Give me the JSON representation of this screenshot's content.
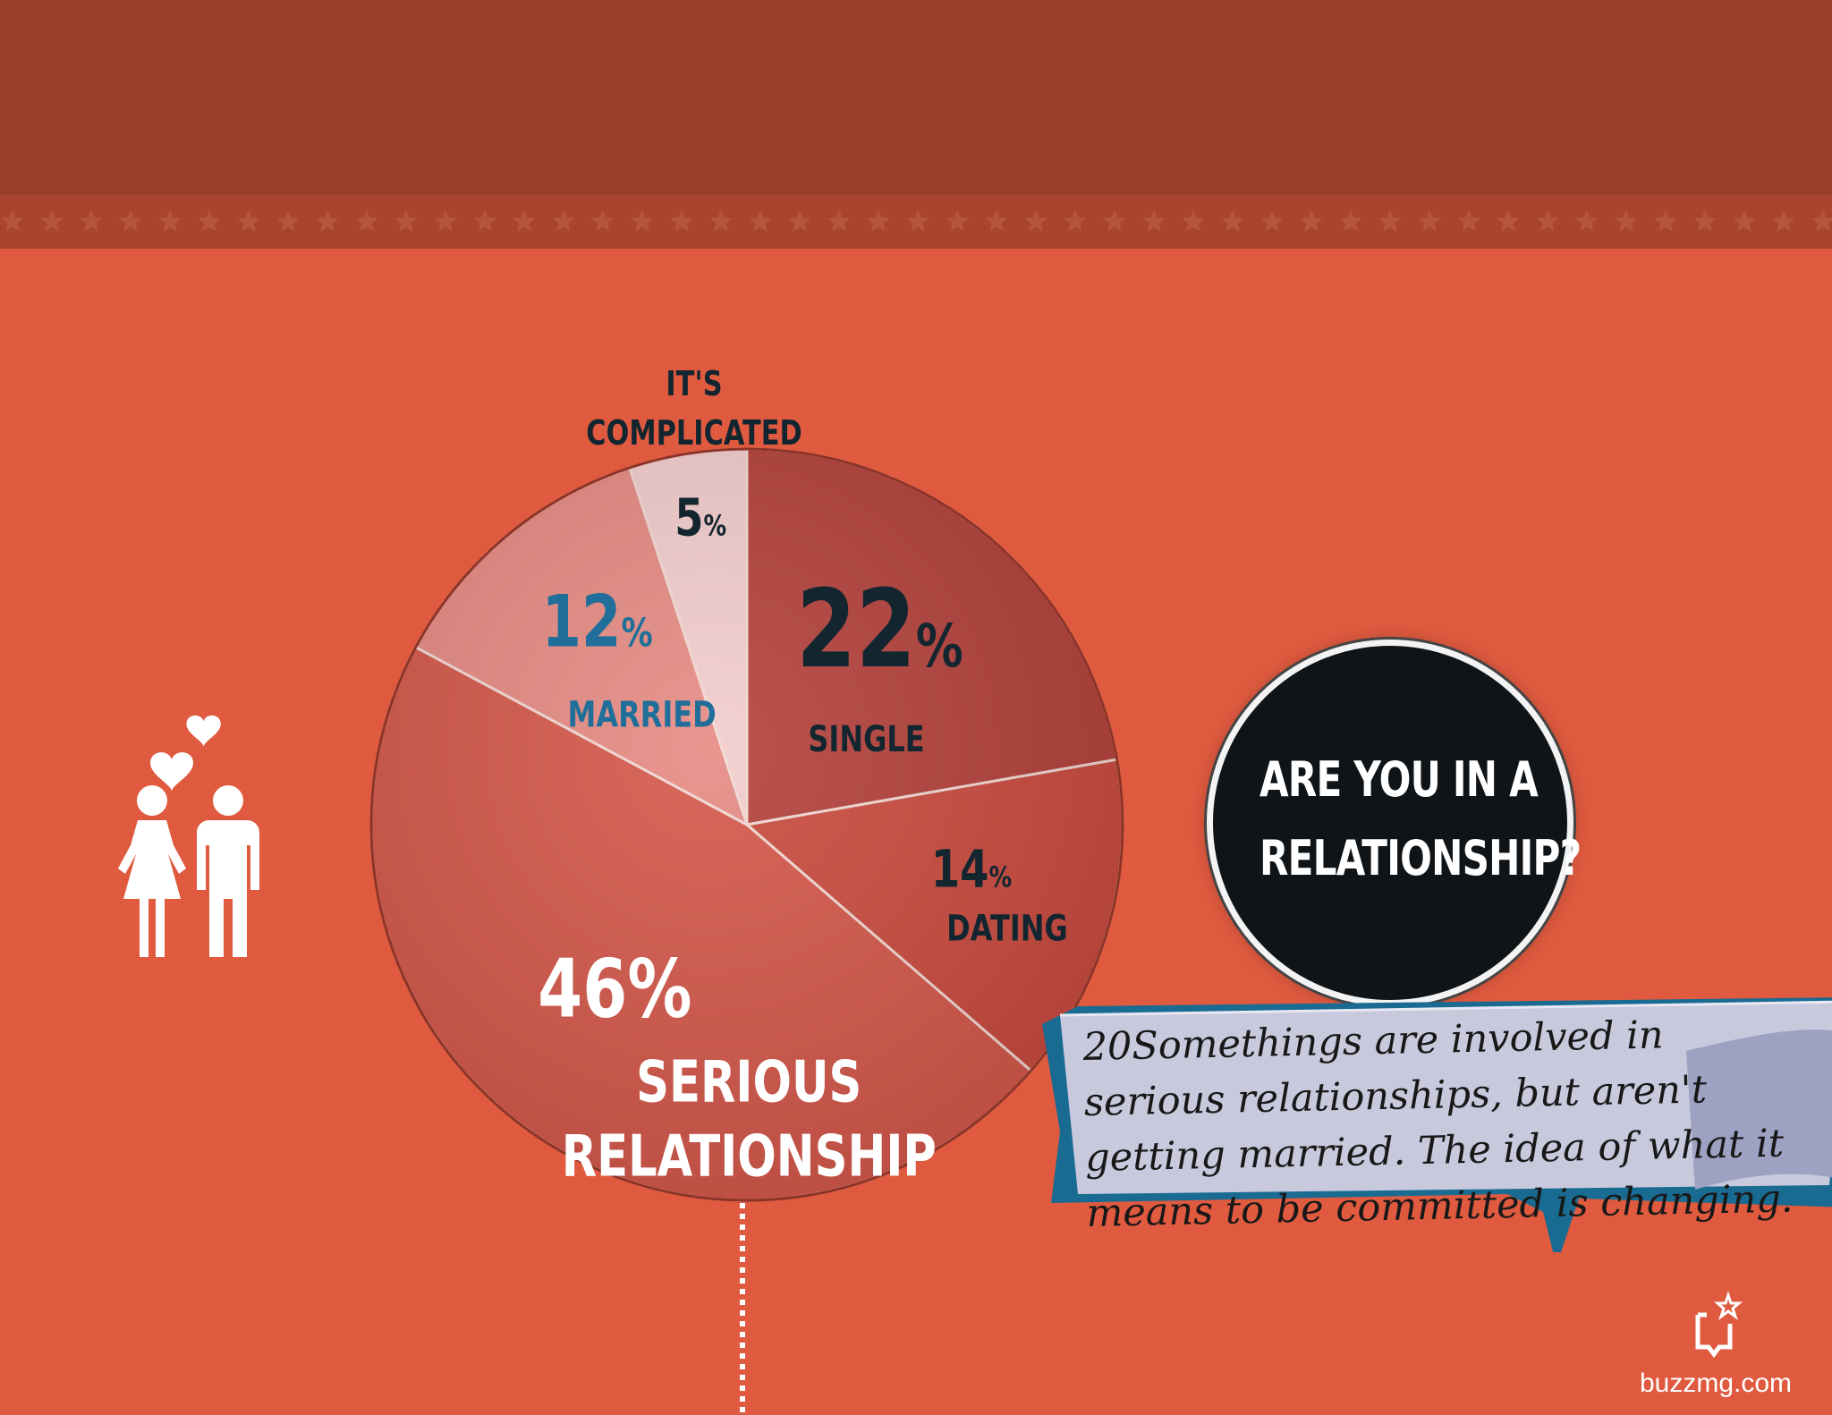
{
  "chart_data": {
    "type": "pie",
    "title": "",
    "question": [
      "ARE YOU IN A",
      "RELATIONSHIP?"
    ],
    "slices": [
      {
        "label": "SINGLE",
        "value": 22,
        "display": "22",
        "color": "#b3403a"
      },
      {
        "label": "DATING",
        "value": 14,
        "display": "14",
        "color": "#c94a3e"
      },
      {
        "label": "SERIOUS RELATIONSHIP",
        "label_lines": [
          "SERIOUS",
          "RELATIONSHIP"
        ],
        "value": 46,
        "display": "46%",
        "color": "#d4574a"
      },
      {
        "label": "MARRIED",
        "value": 12,
        "display": "12",
        "color": "#e58a82"
      },
      {
        "label": "IT'S COMPLICATED",
        "label_lines": [
          "IT'S",
          "COMPLICATED"
        ],
        "value": 5,
        "display": "5",
        "color": "#f3cccc"
      }
    ],
    "percent_sign": "%",
    "label_colors": {
      "dark": "#132630",
      "married": "#1f6f9a",
      "light": "#ffffff"
    }
  },
  "note": {
    "text": "20Somethings are involved in serious relationships, but aren't getting married. The idea of what it means to be committed is changing."
  },
  "brand": {
    "name": "buzzmg.com",
    "icon": "buzz-logo-icon"
  },
  "illustration": {
    "icon": "couple-with-hearts-icon"
  }
}
